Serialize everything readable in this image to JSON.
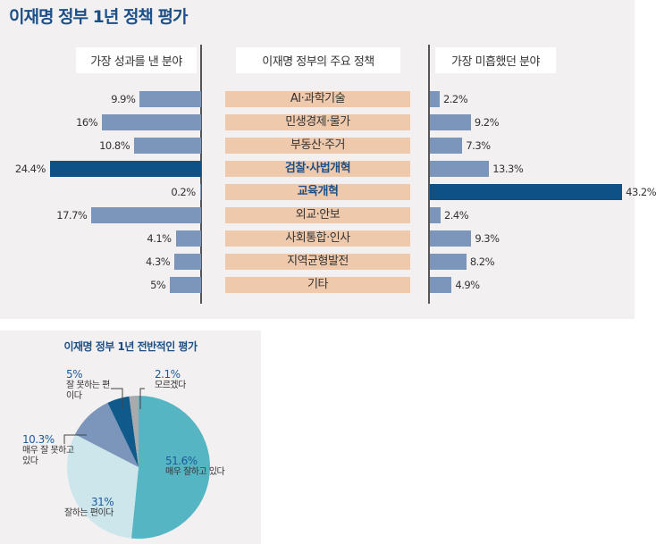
{
  "title": "이재명 정부 1년 정책 평가",
  "headers": {
    "left": "가장 성과를 낸 분야",
    "center": "이재명 정부의 주요 정책",
    "right": "가장 미흡했던 분야"
  },
  "colors": {
    "bar": "#7c95ba",
    "highlight": "#0d5186",
    "category_bg": "#efc9ac",
    "title": "#1d4f86"
  },
  "chart_data": [
    {
      "type": "bar",
      "orientation": "horizontal",
      "categories": [
        "AI·과학기술",
        "민생경제·물가",
        "부동산·주거",
        "검찰·사법개혁",
        "교육개혁",
        "외교·안보",
        "사회통합·인사",
        "지역균형발전",
        "기타"
      ],
      "series": [
        {
          "name": "가장 성과를 낸 분야",
          "values": [
            9.9,
            16,
            10.8,
            24.4,
            0.2,
            17.7,
            4.1,
            4.3,
            5
          ],
          "labels": [
            "9.9%",
            "16%",
            "10.8%",
            "24.4%",
            "0.2%",
            "17.7%",
            "4.1%",
            "4.3%",
            "5%"
          ]
        },
        {
          "name": "가장 미흡했던 분야",
          "values": [
            2.2,
            9.2,
            7.3,
            13.3,
            43.2,
            2.4,
            9.3,
            8.2,
            4.9
          ],
          "labels": [
            "2.2%",
            "9.2%",
            "7.3%",
            "13.3%",
            "43.2%",
            "2.4%",
            "9.3%",
            "8.2%",
            "4.9%"
          ]
        }
      ],
      "highlight": {
        "가장 성과를 낸 분야": "검찰·사법개혁",
        "가장 미흡했던 분야": "교육개혁"
      }
    },
    {
      "type": "pie",
      "title": "이재명 정부 1년 전반적인 평가",
      "slices": [
        {
          "label": "매우 잘하고 있다",
          "value": 51.6,
          "text": "51.6%",
          "color": "#55b5c2"
        },
        {
          "label": "잘하는 편이다",
          "value": 31,
          "text": "31%",
          "color": "#cde6ec"
        },
        {
          "label": "매우 잘 못하고 있다",
          "value": 10.3,
          "text": "10.3%",
          "color": "#7c95ba"
        },
        {
          "label": "잘 못하는 편이다",
          "value": 5,
          "text": "5%",
          "color": "#0f5a8a"
        },
        {
          "label": "모르겠다",
          "value": 2.1,
          "text": "2.1%",
          "color": "#a9aaad"
        }
      ]
    }
  ]
}
